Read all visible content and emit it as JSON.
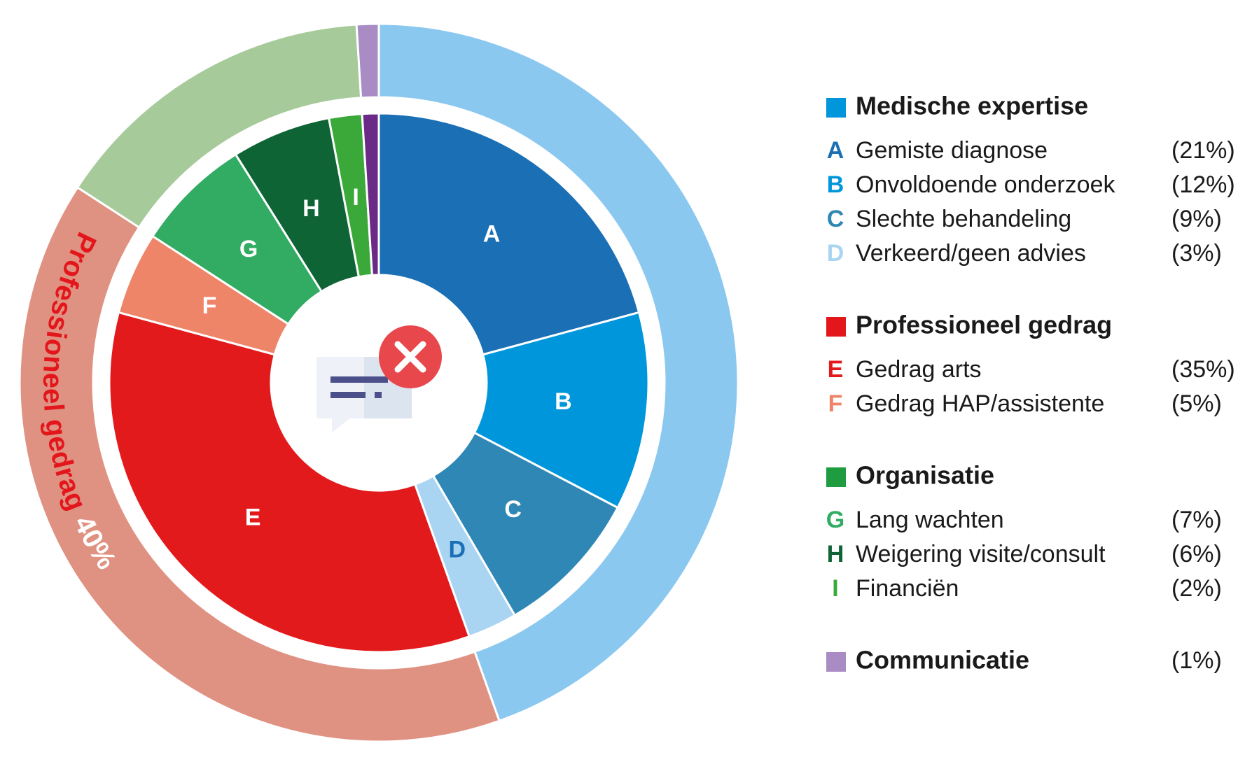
{
  "chart_data": {
    "type": "nested-donut",
    "groups": [
      {
        "name": "Medische expertise",
        "color": "#0096db",
        "ring_color": "#8ac8f0",
        "value": 45,
        "items": [
          {
            "letter": "A",
            "name": "Gemiste diagnose",
            "value": 21,
            "value_label": "(21%)",
            "color": "#1a6fb5"
          },
          {
            "letter": "B",
            "name": "Onvoldoende onderzoek",
            "value": 12,
            "value_label": "(12%)",
            "color": "#0096db"
          },
          {
            "letter": "C",
            "name": "Slechte behandeling",
            "value": 9,
            "value_label": "(9%)",
            "color": "#2f87b5"
          },
          {
            "letter": "D",
            "name": "Verkeerd/geen advies",
            "value": 3,
            "value_label": "(3%)",
            "color": "#a9d5f2"
          }
        ]
      },
      {
        "name": "Professioneel gedrag",
        "color": "#e3161c",
        "ring_color": "#e09282",
        "value": 40,
        "value_label": "40%",
        "items": [
          {
            "letter": "E",
            "name": "Gedrag arts",
            "value": 35,
            "value_label": "(35%)",
            "color": "#e31a1c"
          },
          {
            "letter": "F",
            "name": "Gedrag HAP/assistente",
            "value": 5,
            "value_label": "(5%)",
            "color": "#ee8468"
          }
        ]
      },
      {
        "name": "Organisatie",
        "color": "#1e9c3f",
        "ring_color": "#a6ca9a",
        "value": 15,
        "items": [
          {
            "letter": "G",
            "name": "Lang wachten",
            "value": 7,
            "value_label": "(7%)",
            "color": "#32ab63"
          },
          {
            "letter": "H",
            "name": "Weigering visite/consult",
            "value": 6,
            "value_label": "(6%)",
            "color": "#0f6436"
          },
          {
            "letter": "I",
            "name": "Financiën",
            "value": 2,
            "value_label": "(2%)",
            "color": "#3ba93a"
          }
        ]
      },
      {
        "name": "Communicatie",
        "color": "#a98cc4",
        "ring_color": "#a98cc4",
        "inner_color": "#6a2a86",
        "value": 1,
        "value_label": "(1%)",
        "items": []
      }
    ]
  }
}
